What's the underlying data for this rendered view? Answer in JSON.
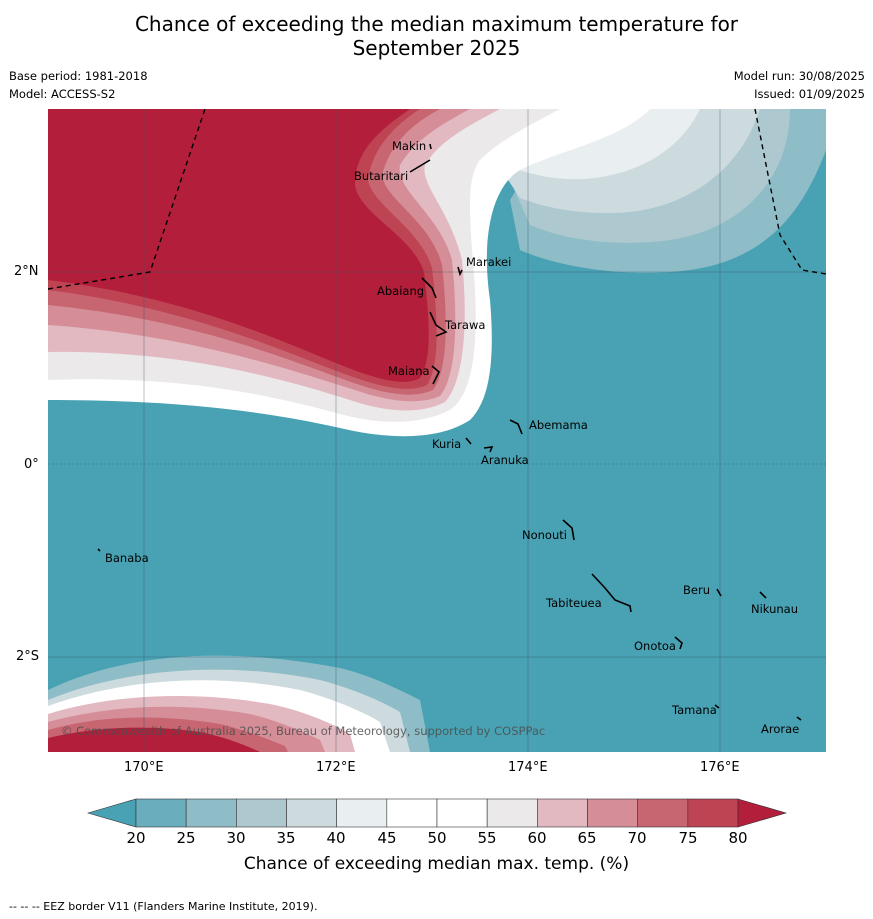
{
  "title_line1": "Chance of exceeding the median maximum temperature for",
  "title_line2": "September 2025",
  "meta": {
    "base_period": "Base period: 1981-2018",
    "model": "Model: ACCESS-S2",
    "model_run": "Model run: 30/08/2025",
    "issued": "Issued: 01/09/2025"
  },
  "map": {
    "lon_labels": [
      "170°E",
      "172°E",
      "174°E",
      "176°E"
    ],
    "lat_labels": [
      "2°N",
      "0°",
      "2°S"
    ],
    "copyright": "© Commonwealth of Australia 2025, Bureau of Meteorology, supported by COSPPac",
    "places": [
      "Makin",
      "Butaritari",
      "Marakei",
      "Abaiang",
      "Tarawa",
      "Maiana",
      "Abemama",
      "Kuria",
      "Aranuka",
      "Nonouti",
      "Banaba",
      "Beru",
      "Nikunau",
      "Tabiteuea",
      "Onotoa",
      "Tamana",
      "Arorae"
    ],
    "colors": {
      "ocean_low": "#49a2b3",
      "high": "#b31f3b"
    }
  },
  "colorbar": {
    "ticks": [
      "20",
      "25",
      "30",
      "35",
      "40",
      "45",
      "50",
      "55",
      "60",
      "65",
      "70",
      "75",
      "80"
    ],
    "colors": [
      "#49a2b3",
      "#6aaebd",
      "#8ebcc7",
      "#adc8cf",
      "#cddbdf",
      "#e9eff0",
      "#ffffff",
      "#ffffff",
      "#ebe9ea",
      "#e2b9c0",
      "#d58e98",
      "#c76570",
      "#bf4453",
      "#b31f3b"
    ],
    "label": "Chance of exceeding median max. temp. (%)"
  },
  "footnote": "-- -- -- EEZ border V11 (Flanders Marine Institute, 2019)."
}
